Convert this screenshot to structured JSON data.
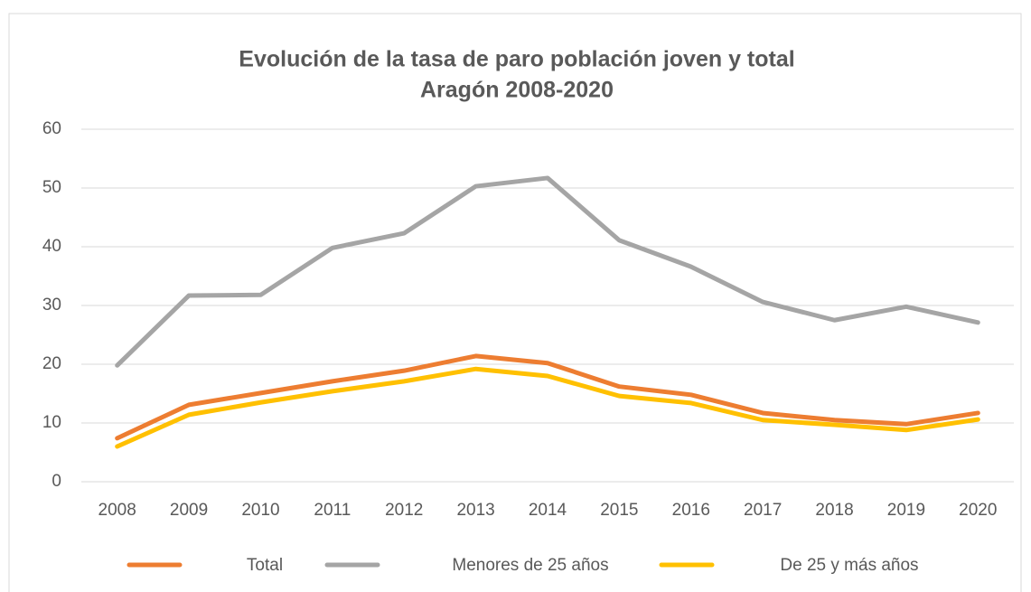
{
  "chart_data": {
    "type": "line",
    "title": "Evolución de la tasa de paro población joven y total",
    "subtitle": "Aragón 2008-2020",
    "categories": [
      "2008",
      "2009",
      "2010",
      "2011",
      "2012",
      "2013",
      "2014",
      "2015",
      "2016",
      "2017",
      "2018",
      "2019",
      "2020"
    ],
    "series": [
      {
        "name": "Total",
        "color": "#ed7d31",
        "values": [
          7.4,
          13.1,
          15.1,
          17.1,
          18.9,
          21.4,
          20.2,
          16.2,
          14.8,
          11.7,
          10.5,
          9.8,
          11.7
        ]
      },
      {
        "name": "Menores de 25 años",
        "color": "#a5a5a5",
        "values": [
          19.8,
          31.7,
          31.8,
          39.8,
          42.3,
          50.3,
          51.7,
          41.1,
          36.6,
          30.6,
          27.5,
          29.8,
          27.1
        ]
      },
      {
        "name": "De 25 y más años",
        "color": "#ffc000",
        "values": [
          6.0,
          11.4,
          13.5,
          15.4,
          17.1,
          19.2,
          18.0,
          14.6,
          13.4,
          10.5,
          9.7,
          8.8,
          10.6
        ]
      }
    ],
    "ylim": [
      0,
      60
    ],
    "yticks": [
      0,
      10,
      20,
      30,
      40,
      50,
      60
    ],
    "grid": true,
    "legend": "bottom"
  }
}
